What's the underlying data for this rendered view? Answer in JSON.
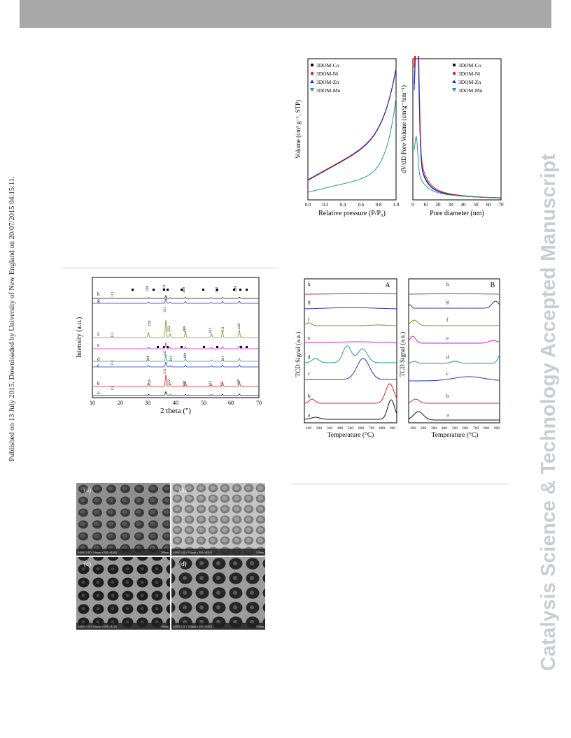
{
  "side_note": "Published on 13 July 2015. Downloaded by University of New England on 20/07/2015 04:15:11.",
  "watermark": "Catalysis Science & Technology Accepted Manuscript",
  "colors": {
    "co": "#111111",
    "ni": "#e02020",
    "zn": "#2030d0",
    "mn": "#209a8a",
    "header": "#a9a9a9",
    "watermark": "#c9ccd3"
  },
  "iso": {
    "legend": [
      "3DOM-Co",
      "3DOM-Ni",
      "3DOM-Zn",
      "3DOM-Mn"
    ],
    "ylabel": "Volume (cm³ g⁻¹, STP)",
    "xlabel": "Relative pressure (P/P₀)",
    "xticks": [
      "0.0",
      "0.2",
      "0.4",
      "0.6",
      "0.8",
      "1.0"
    ]
  },
  "pore": {
    "legend": [
      "3DOM-Co",
      "3DOM-Ni",
      "3DOM-Zn",
      "3DOM-Mn"
    ],
    "ylabel": "dV/dD Pore Volume (cm³g⁻¹nm⁻¹)",
    "xlabel": "Pore diameter (nm)",
    "xticks": [
      "0",
      "10",
      "20",
      "30",
      "40",
      "50",
      "60",
      "70"
    ]
  },
  "xrd": {
    "ylabel": "Intensity (a.u.)",
    "xlabel": "2 theta (°)",
    "xticks": [
      "10",
      "20",
      "30",
      "40",
      "50",
      "60",
      "70"
    ],
    "trace_labels": [
      "h",
      "g",
      "f",
      "e",
      "d",
      "c",
      "b",
      "a"
    ],
    "peak_labels": [
      "111",
      "220",
      "311",
      "222",
      "400",
      "422",
      "511",
      "440",
      "333"
    ]
  },
  "tpr_a": {
    "panel": "A",
    "ylabel": "TCD Signal (a.u.)",
    "xlabel": "Temperature (°C)",
    "trace_labels": [
      "h",
      "g",
      "f",
      "e",
      "d",
      "c",
      "b",
      "a"
    ],
    "xticks": [
      "100",
      "200",
      "300",
      "400",
      "500",
      "600",
      "700",
      "800",
      "900"
    ]
  },
  "tpr_b": {
    "panel": "B",
    "ylabel": "TCD Signal (a.u.)",
    "xlabel": "Temperature (°C)",
    "trace_labels": [
      "h",
      "g",
      "f",
      "e",
      "d",
      "c",
      "b",
      "a"
    ],
    "xticks": [
      "100",
      "200",
      "300",
      "400",
      "500",
      "600",
      "700",
      "800",
      "900"
    ]
  },
  "sem": {
    "panel_labels": [
      "(a)",
      "(b)",
      "(c)",
      "(d)"
    ],
    "captions": [
      "S4800 5.0kV 8.6mm x100k SE(M)",
      "S4800 5.0kV 8.6mm x100k SE(M)",
      "S4800 5.0kV 8.6mm x100k SE(M)",
      "S4800 5.0kV 8.6mm x100k SE(M)"
    ],
    "scales": [
      "500nm",
      "500nm",
      "500nm",
      "500nm"
    ]
  }
}
